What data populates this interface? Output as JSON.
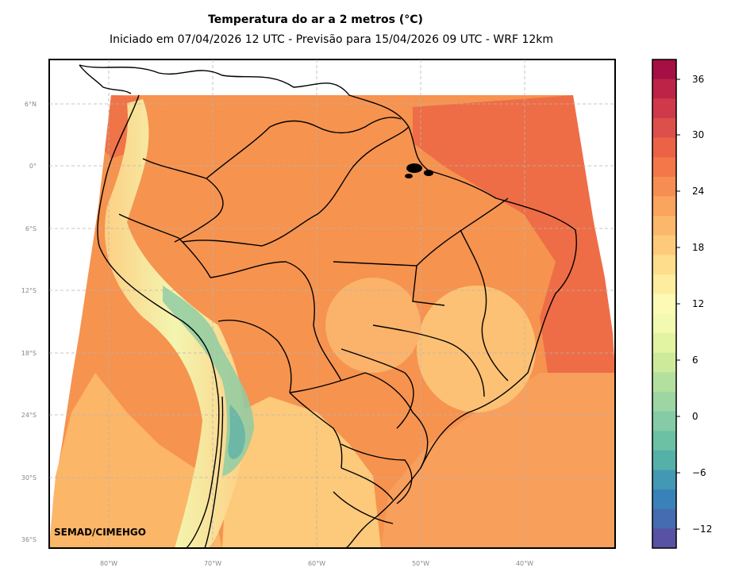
{
  "title": "Temperatura do ar a 2 metros (°C)",
  "subtitle": "Iniciado em 07/04/2026 12 UTC - Previsão para 15/04/2026 09 UTC - WRF 12km",
  "credit": "SEMAD/CIMEHGO",
  "lat_labels": [
    "6°N",
    "0°",
    "6°S",
    "12°S",
    "18°S",
    "24°S",
    "30°S",
    "36°S"
  ],
  "lon_labels": [
    "80°W",
    "70°W",
    "60°W",
    "50°W",
    "40°W"
  ],
  "colorbar": {
    "ticks": [
      "36",
      "30",
      "24",
      "18",
      "12",
      "6",
      "0",
      "−6",
      "−12"
    ],
    "colors": [
      "#a50f44",
      "#bd2346",
      "#cf3a4b",
      "#dd4f4a",
      "#ec6246",
      "#f37749",
      "#f68e53",
      "#faa45e",
      "#fbb76b",
      "#fdca7b",
      "#fedd8c",
      "#feec9f",
      "#fdfab5",
      "#f2f9b0",
      "#e2f3a1",
      "#cdea9b",
      "#b4e09d",
      "#9dd6a3",
      "#85cba5",
      "#6cc1a5",
      "#55b0a8",
      "#4398b3",
      "#3982b9",
      "#456cb1",
      "#5752a3"
    ]
  },
  "colors": {
    "ocean_warm": "#ef7147",
    "land_mid": "#f79a58",
    "andes_high": "#fee58d",
    "andes_cold": "#8ccaa4",
    "south_cool": "#fdc57a"
  },
  "map": {
    "type": "filled-contour",
    "variable": "2m air temperature",
    "units": "°C",
    "extent_lon": [
      -86,
      -31
    ],
    "extent_lat": [
      -37,
      10
    ]
  }
}
